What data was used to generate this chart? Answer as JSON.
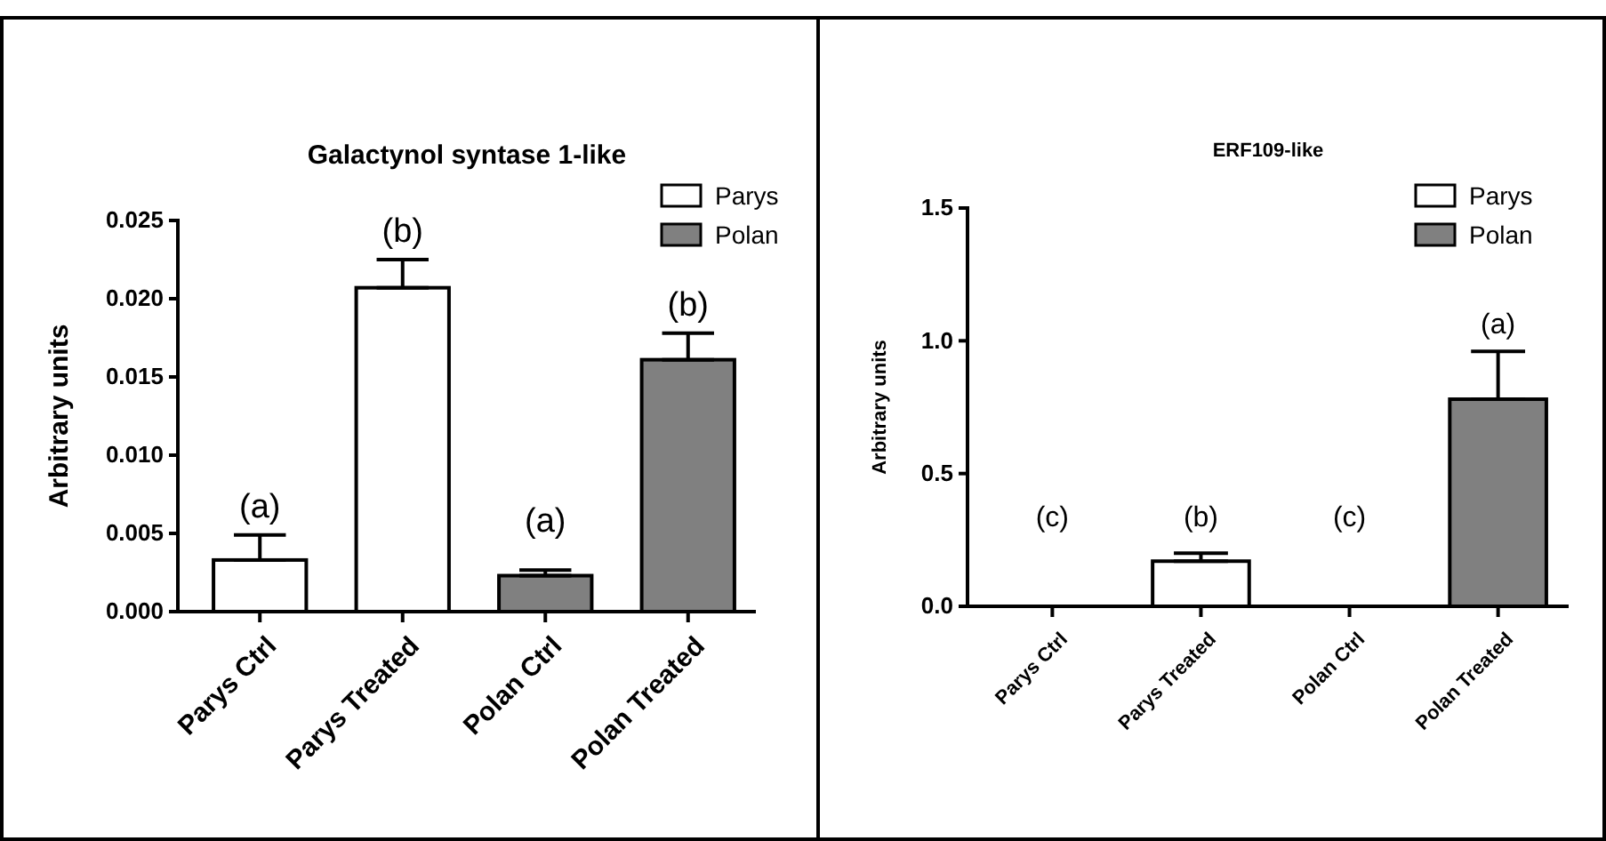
{
  "chart_data": [
    {
      "type": "bar",
      "title": "Galactynol syntase 1-like",
      "ylabel": "Arbitrary units",
      "categories": [
        "Parys Ctrl",
        "Parys Treated",
        "Polan Ctrl",
        "Polan Treated"
      ],
      "series": [
        {
          "name": "Parys",
          "color": "#ffffff",
          "values": [
            0.0033,
            0.0207,
            null,
            null
          ],
          "errors": [
            [
              0.0033,
              0.0049
            ],
            [
              0.0207,
              0.0225
            ],
            null,
            null
          ]
        },
        {
          "name": "Polan",
          "color": "#808080",
          "values": [
            null,
            null,
            0.0023,
            0.0161
          ],
          "errors": [
            null,
            null,
            [
              0.0023,
              0.00265
            ],
            [
              0.0161,
              0.0178
            ]
          ]
        }
      ],
      "ylim": [
        0,
        0.025
      ],
      "yticks": [
        {
          "value": 0,
          "label": "0.000"
        },
        {
          "value": 0.005,
          "label": "0.005"
        },
        {
          "value": 0.01,
          "label": "0.010"
        },
        {
          "value": 0.015,
          "label": "0.015"
        },
        {
          "value": 0.02,
          "label": "0.020"
        },
        {
          "value": 0.025,
          "label": "0.025"
        }
      ],
      "annotations": [
        "(a)",
        "(b)",
        "(a)",
        "(b)"
      ],
      "legend": "top right",
      "grid": false
    },
    {
      "type": "bar",
      "title": "ERF109-like",
      "ylabel": "Arbitrary units",
      "categories": [
        "Parys Ctrl",
        "Parys Treated",
        "Polan Ctrl",
        "Polan Treated"
      ],
      "series": [
        {
          "name": "Parys",
          "color": "#ffffff",
          "values": [
            0,
            0.17,
            null,
            null
          ],
          "errors": [
            null,
            [
              0.17,
              0.2
            ],
            null,
            null
          ]
        },
        {
          "name": "Polan",
          "color": "#808080",
          "values": [
            null,
            null,
            0,
            0.78
          ],
          "errors": [
            null,
            null,
            null,
            [
              0.78,
              0.96
            ]
          ]
        }
      ],
      "ylim": [
        0,
        1.5
      ],
      "yticks": [
        {
          "value": 0,
          "label": "0.0"
        },
        {
          "value": 0.5,
          "label": "0.5"
        },
        {
          "value": 1,
          "label": "1.0"
        },
        {
          "value": 1.5,
          "label": "1.5"
        }
      ],
      "annotations": [
        "(c)",
        "(b)",
        "(c)",
        "(a)"
      ],
      "legend": "top right",
      "grid": false
    }
  ]
}
